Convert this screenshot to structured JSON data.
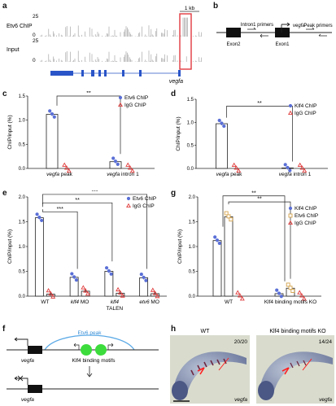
{
  "panels": {
    "a": {
      "label": "a",
      "scale": "1 kb",
      "tracks": [
        {
          "name": "Etv6 ChIP",
          "max": "25",
          "min": "0"
        },
        {
          "name": "Input",
          "max": "25",
          "min": "0"
        }
      ],
      "gene": "vegfa"
    },
    "b": {
      "label": "b",
      "intron_primers": "Intron1 primers",
      "peak_primers": "Peak primers",
      "gene": "vegfa",
      "exon2": "Exon2",
      "exon1": "Exon1"
    },
    "c": {
      "label": "c"
    },
    "d": {
      "label": "d"
    },
    "e": {
      "label": "e"
    },
    "f": {
      "label": "f",
      "peak": "Etv6 peak",
      "motifs": "Klf4 binding motifs",
      "gene_top": "vegfa",
      "gene_bottom": "vegfa"
    },
    "g": {
      "label": "g"
    },
    "h": {
      "label": "h",
      "left_title": "WT",
      "right_title": "Klf4 binding motifs KO",
      "left_count": "20/20",
      "right_count": "14/24",
      "left_gene": "vegfa",
      "right_gene": "vegfa"
    }
  },
  "chart_data": [
    {
      "panel": "c",
      "type": "bar",
      "ylabel": "ChIP/input (%)",
      "ylim": [
        0,
        1.5
      ],
      "yticks": [
        "0.0",
        "0.5",
        "1.0",
        "1.5"
      ],
      "categories": [
        "vegfa peak",
        "vegfa intron 1"
      ],
      "series": [
        {
          "name": "Etv6 ChIP",
          "values": [
            1.12,
            0.14
          ],
          "color": "#5a6fd6",
          "marker": "circle"
        },
        {
          "name": "IgG ChIP",
          "values": [
            0.0,
            0.0
          ],
          "color": "#e03c3c",
          "marker": "triangle"
        }
      ],
      "significance": [
        "**"
      ]
    },
    {
      "panel": "d",
      "type": "bar",
      "ylabel": "ChIP/input (%)",
      "ylim": [
        0,
        1.5
      ],
      "yticks": [
        "0.0",
        "0.5",
        "1.0",
        "1.5"
      ],
      "categories": [
        "vegfa peak",
        "vegfa intron 1"
      ],
      "series": [
        {
          "name": "Klf4 ChIP",
          "values": [
            0.97,
            0.01
          ],
          "color": "#5a6fd6",
          "marker": "circle"
        },
        {
          "name": "IgG ChIP",
          "values": [
            0.0,
            0.0
          ],
          "color": "#e03c3c",
          "marker": "triangle"
        }
      ],
      "significance": [
        "**"
      ]
    },
    {
      "panel": "e",
      "type": "bar",
      "ylabel": "ChIP/input (%)",
      "ylim": [
        0,
        2.0
      ],
      "yticks": [
        "0.0",
        "0.5",
        "1.0",
        "1.5",
        "2.0"
      ],
      "categories": [
        "WT",
        "klf4 MO",
        "klf4 TALEN",
        "etv6 MO"
      ],
      "series": [
        {
          "name": "Etv6 ChIP",
          "values": [
            1.58,
            0.38,
            0.5,
            0.37
          ],
          "color": "#5a6fd6",
          "marker": "circle"
        },
        {
          "name": "IgG ChIP",
          "values": [
            0.04,
            0.1,
            0.06,
            0.05
          ],
          "color": "#e03c3c",
          "marker": "triangle"
        }
      ],
      "significance": [
        "***",
        "**",
        "***"
      ]
    },
    {
      "panel": "g",
      "type": "bar",
      "ylabel": "ChIP/input (%)",
      "ylim": [
        0,
        2.0
      ],
      "yticks": [
        "0.0",
        "0.5",
        "1.0",
        "1.5",
        "2.0"
      ],
      "categories": [
        "WT",
        "Klf4 binding motifs KO"
      ],
      "series": [
        {
          "name": "Klf4 ChIP",
          "values": [
            1.12,
            0.05
          ],
          "color": "#5a6fd6",
          "marker": "circle"
        },
        {
          "name": "Etv6 ChIP",
          "values": [
            1.6,
            0.16
          ],
          "color": "#d4a24a",
          "marker": "square"
        },
        {
          "name": "IgG ChIP",
          "values": [
            0.0,
            0.0
          ],
          "color": "#e03c3c",
          "marker": "triangle"
        }
      ],
      "significance": [
        "**",
        "**"
      ]
    }
  ]
}
